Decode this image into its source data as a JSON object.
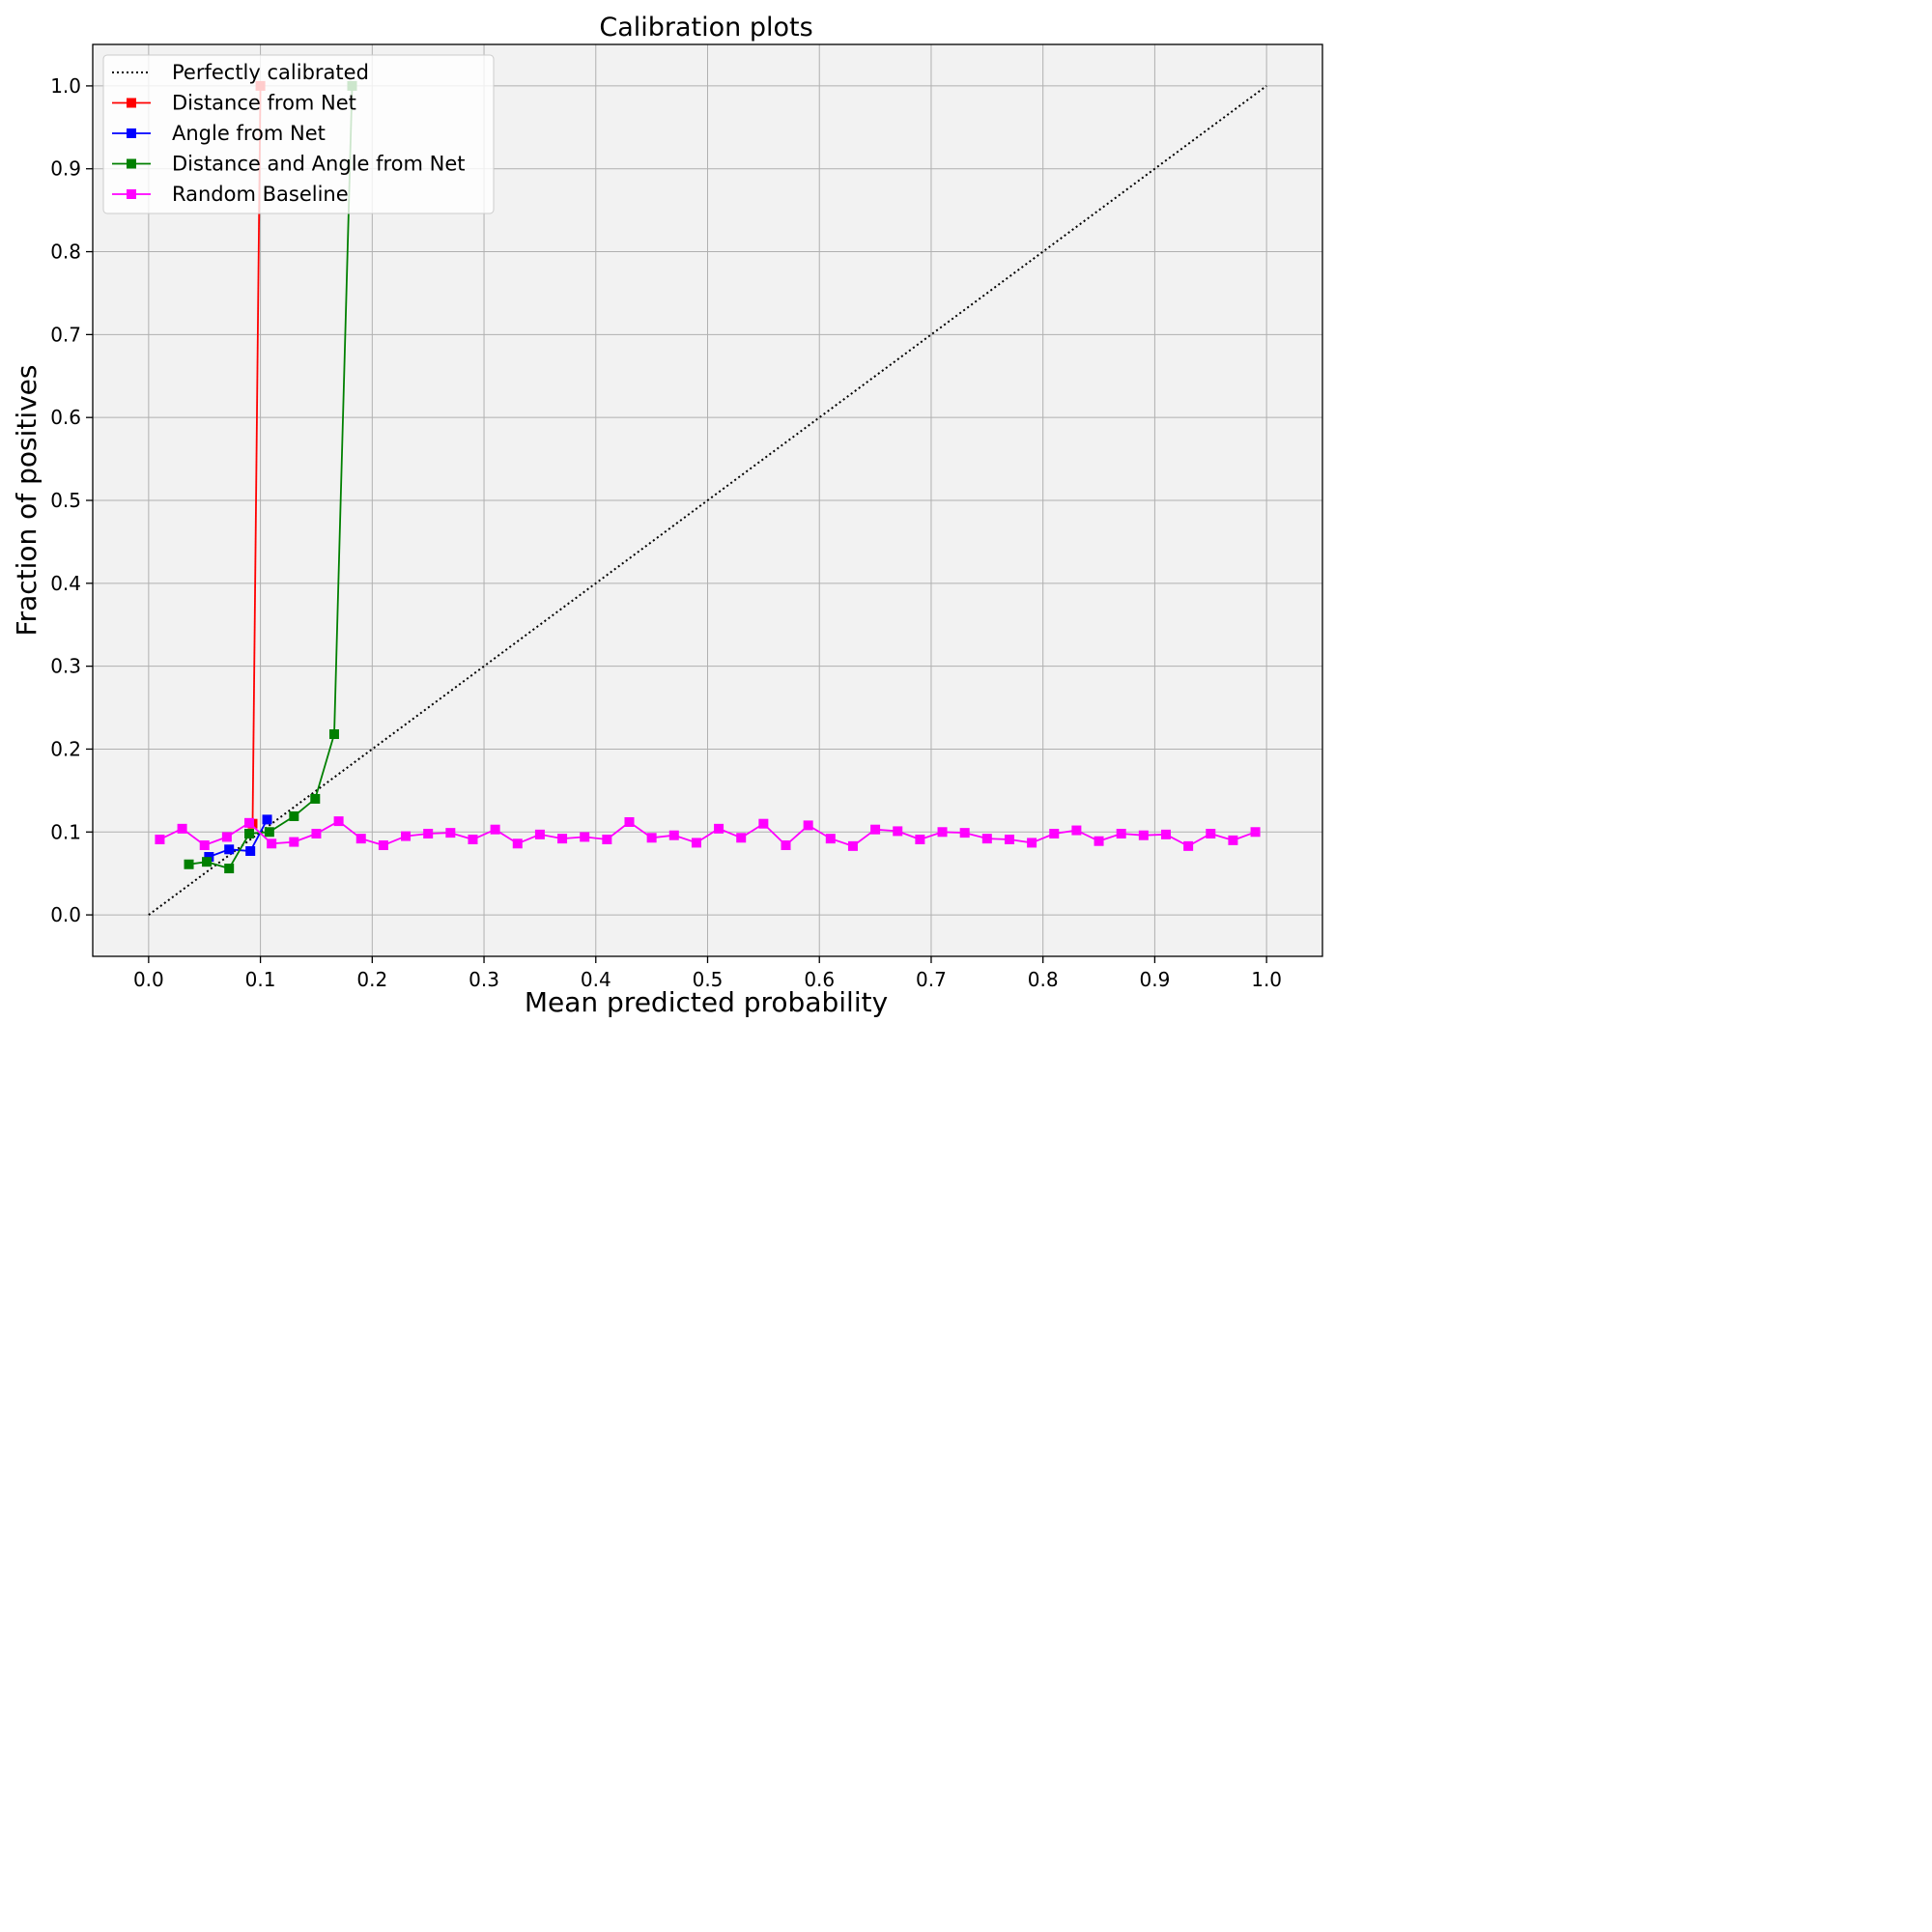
{
  "chart_data": {
    "type": "line",
    "title": "Calibration plots",
    "xlabel": "Mean predicted probability",
    "ylabel": "Fraction of positives",
    "xlim": [
      -0.05,
      1.05
    ],
    "ylim": [
      -0.05,
      1.05
    ],
    "xticks": [
      "0.0",
      "0.1",
      "0.2",
      "0.3",
      "0.4",
      "0.5",
      "0.6",
      "0.7",
      "0.8",
      "0.9",
      "1.0"
    ],
    "yticks": [
      "0.0",
      "0.1",
      "0.2",
      "0.3",
      "0.4",
      "0.5",
      "0.6",
      "0.7",
      "0.8",
      "0.9",
      "1.0"
    ],
    "grid": true,
    "legend_position": "top-left",
    "series": [
      {
        "name": "Perfectly calibrated",
        "color": "#000000",
        "style": "dotted",
        "marker": "none",
        "x": [
          0.0,
          1.0
        ],
        "y": [
          0.0,
          1.0
        ]
      },
      {
        "name": "Distance from Net",
        "color": "#ff0000",
        "style": "solid",
        "marker": "square",
        "x": [
          0.093,
          0.1
        ],
        "y": [
          0.11,
          1.0
        ]
      },
      {
        "name": "Angle from Net",
        "color": "#0000ff",
        "style": "solid",
        "marker": "square",
        "x": [
          0.054,
          0.072,
          0.091,
          0.106
        ],
        "y": [
          0.07,
          0.079,
          0.077,
          0.115
        ]
      },
      {
        "name": "Distance and Angle from Net",
        "color": "#008000",
        "style": "solid",
        "marker": "square",
        "x": [
          0.036,
          0.052,
          0.072,
          0.09,
          0.108,
          0.13,
          0.149,
          0.166,
          0.182
        ],
        "y": [
          0.061,
          0.064,
          0.056,
          0.098,
          0.1,
          0.119,
          0.14,
          0.218,
          1.0
        ]
      },
      {
        "name": "Random Baseline",
        "color": "#ff00ff",
        "style": "solid",
        "marker": "square",
        "x": [
          0.01,
          0.03,
          0.05,
          0.07,
          0.09,
          0.11,
          0.13,
          0.15,
          0.17,
          0.19,
          0.21,
          0.23,
          0.25,
          0.27,
          0.29,
          0.31,
          0.33,
          0.35,
          0.37,
          0.39,
          0.41,
          0.43,
          0.45,
          0.47,
          0.49,
          0.51,
          0.53,
          0.55,
          0.57,
          0.59,
          0.61,
          0.63,
          0.65,
          0.67,
          0.69,
          0.71,
          0.73,
          0.75,
          0.77,
          0.79,
          0.81,
          0.83,
          0.85,
          0.87,
          0.89,
          0.91,
          0.93,
          0.95,
          0.97,
          0.99
        ],
        "y": [
          0.091,
          0.104,
          0.084,
          0.094,
          0.111,
          0.086,
          0.088,
          0.098,
          0.113,
          0.092,
          0.084,
          0.095,
          0.098,
          0.099,
          0.091,
          0.103,
          0.086,
          0.097,
          0.092,
          0.094,
          0.091,
          0.112,
          0.093,
          0.096,
          0.087,
          0.104,
          0.093,
          0.11,
          0.084,
          0.108,
          0.092,
          0.083,
          0.103,
          0.101,
          0.091,
          0.1,
          0.099,
          0.092,
          0.091,
          0.087,
          0.098,
          0.102,
          0.089,
          0.098,
          0.096,
          0.097,
          0.083,
          0.098,
          0.09,
          0.1
        ]
      }
    ]
  }
}
